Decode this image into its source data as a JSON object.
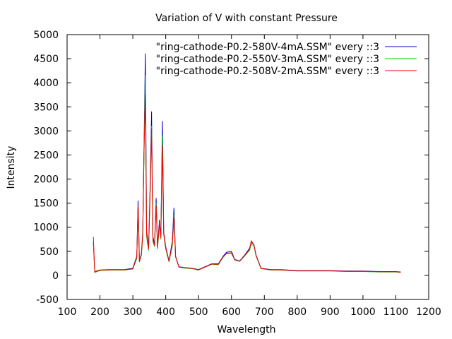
{
  "chart_data": {
    "type": "line",
    "title": "Variation of V with constant Pressure",
    "xlabel": "Wavelength",
    "ylabel": "Intensity",
    "xlim": [
      100,
      1200
    ],
    "ylim": [
      -500,
      5000
    ],
    "xticks": [
      100,
      200,
      300,
      400,
      500,
      600,
      700,
      800,
      900,
      1000,
      1100,
      1200
    ],
    "yticks": [
      -500,
      0,
      500,
      1000,
      1500,
      2000,
      2500,
      3000,
      3500,
      4000,
      4500,
      5000
    ],
    "grid": false,
    "legend_position": "top-right",
    "series": [
      {
        "name": "\"ring-cathode-P0.2-580V-4mA.SSM\" every ::3",
        "color": "#0000cc",
        "points": [
          [
            180,
            700
          ],
          [
            184,
            80
          ],
          [
            200,
            110
          ],
          [
            225,
            120
          ],
          [
            250,
            120
          ],
          [
            275,
            120
          ],
          [
            300,
            150
          ],
          [
            312,
            400
          ],
          [
            316,
            1550
          ],
          [
            320,
            300
          ],
          [
            326,
            450
          ],
          [
            330,
            900
          ],
          [
            334,
            2650
          ],
          [
            338,
            4600
          ],
          [
            342,
            900
          ],
          [
            348,
            600
          ],
          [
            353,
            2000
          ],
          [
            357,
            3400
          ],
          [
            361,
            800
          ],
          [
            366,
            650
          ],
          [
            371,
            1600
          ],
          [
            375,
            600
          ],
          [
            381,
            1150
          ],
          [
            385,
            800
          ],
          [
            390,
            3200
          ],
          [
            394,
            900
          ],
          [
            400,
            600
          ],
          [
            410,
            300
          ],
          [
            420,
            700
          ],
          [
            425,
            1400
          ],
          [
            430,
            400
          ],
          [
            440,
            180
          ],
          [
            460,
            160
          ],
          [
            480,
            150
          ],
          [
            500,
            120
          ],
          [
            520,
            180
          ],
          [
            540,
            240
          ],
          [
            560,
            240
          ],
          [
            575,
            400
          ],
          [
            585,
            480
          ],
          [
            600,
            500
          ],
          [
            610,
            330
          ],
          [
            625,
            300
          ],
          [
            640,
            420
          ],
          [
            655,
            560
          ],
          [
            660,
            680
          ],
          [
            668,
            650
          ],
          [
            675,
            420
          ],
          [
            690,
            150
          ],
          [
            720,
            120
          ],
          [
            750,
            120
          ],
          [
            800,
            100
          ],
          [
            850,
            100
          ],
          [
            900,
            100
          ],
          [
            950,
            90
          ],
          [
            1000,
            90
          ],
          [
            1050,
            80
          ],
          [
            1100,
            80
          ],
          [
            1115,
            70
          ]
        ]
      },
      {
        "name": "\"ring-cathode-P0.2-550V-3mA.SSM\" every ::3",
        "color": "#00cc00",
        "points": [
          [
            180,
            650
          ],
          [
            184,
            60
          ],
          [
            200,
            100
          ],
          [
            225,
            110
          ],
          [
            250,
            110
          ],
          [
            275,
            110
          ],
          [
            300,
            130
          ],
          [
            312,
            350
          ],
          [
            316,
            1400
          ],
          [
            320,
            280
          ],
          [
            326,
            420
          ],
          [
            330,
            800
          ],
          [
            334,
            2500
          ],
          [
            338,
            4150
          ],
          [
            342,
            800
          ],
          [
            348,
            520
          ],
          [
            353,
            1800
          ],
          [
            357,
            3100
          ],
          [
            361,
            700
          ],
          [
            366,
            600
          ],
          [
            371,
            1500
          ],
          [
            375,
            550
          ],
          [
            381,
            1050
          ],
          [
            385,
            750
          ],
          [
            390,
            2900
          ],
          [
            394,
            850
          ],
          [
            400,
            550
          ],
          [
            410,
            280
          ],
          [
            420,
            600
          ],
          [
            425,
            1250
          ],
          [
            430,
            380
          ],
          [
            440,
            170
          ],
          [
            460,
            150
          ],
          [
            480,
            140
          ],
          [
            500,
            110
          ],
          [
            520,
            170
          ],
          [
            540,
            230
          ],
          [
            560,
            220
          ],
          [
            575,
            380
          ],
          [
            585,
            450
          ],
          [
            600,
            460
          ],
          [
            610,
            320
          ],
          [
            625,
            290
          ],
          [
            640,
            400
          ],
          [
            655,
            520
          ],
          [
            660,
            640
          ],
          [
            668,
            620
          ],
          [
            675,
            400
          ],
          [
            690,
            140
          ],
          [
            720,
            110
          ],
          [
            750,
            110
          ],
          [
            800,
            90
          ],
          [
            850,
            90
          ],
          [
            900,
            90
          ],
          [
            950,
            80
          ],
          [
            1000,
            80
          ],
          [
            1050,
            70
          ],
          [
            1100,
            70
          ],
          [
            1115,
            60
          ]
        ]
      },
      {
        "name": "\"ring-cathode-P0.2-508V-2mA.SSM\" every ::3",
        "color": "#ff0000",
        "points": [
          [
            180,
            800
          ],
          [
            184,
            70
          ],
          [
            200,
            110
          ],
          [
            225,
            115
          ],
          [
            250,
            115
          ],
          [
            275,
            115
          ],
          [
            300,
            140
          ],
          [
            312,
            380
          ],
          [
            316,
            1450
          ],
          [
            320,
            290
          ],
          [
            326,
            430
          ],
          [
            330,
            850
          ],
          [
            334,
            2550
          ],
          [
            338,
            3750
          ],
          [
            342,
            850
          ],
          [
            348,
            550
          ],
          [
            353,
            1850
          ],
          [
            357,
            3050
          ],
          [
            361,
            750
          ],
          [
            366,
            620
          ],
          [
            371,
            1450
          ],
          [
            375,
            570
          ],
          [
            381,
            1100
          ],
          [
            385,
            780
          ],
          [
            390,
            2700
          ],
          [
            394,
            870
          ],
          [
            400,
            580
          ],
          [
            410,
            290
          ],
          [
            420,
            650
          ],
          [
            425,
            1200
          ],
          [
            430,
            390
          ],
          [
            440,
            175
          ],
          [
            460,
            155
          ],
          [
            480,
            145
          ],
          [
            500,
            115
          ],
          [
            520,
            175
          ],
          [
            540,
            235
          ],
          [
            560,
            230
          ],
          [
            575,
            390
          ],
          [
            585,
            460
          ],
          [
            600,
            470
          ],
          [
            610,
            325
          ],
          [
            625,
            295
          ],
          [
            640,
            410
          ],
          [
            655,
            540
          ],
          [
            660,
            720
          ],
          [
            668,
            640
          ],
          [
            675,
            410
          ],
          [
            690,
            145
          ],
          [
            720,
            115
          ],
          [
            750,
            115
          ],
          [
            800,
            95
          ],
          [
            850,
            95
          ],
          [
            900,
            95
          ],
          [
            950,
            85
          ],
          [
            1000,
            85
          ],
          [
            1050,
            75
          ],
          [
            1100,
            75
          ],
          [
            1115,
            65
          ]
        ]
      }
    ]
  }
}
